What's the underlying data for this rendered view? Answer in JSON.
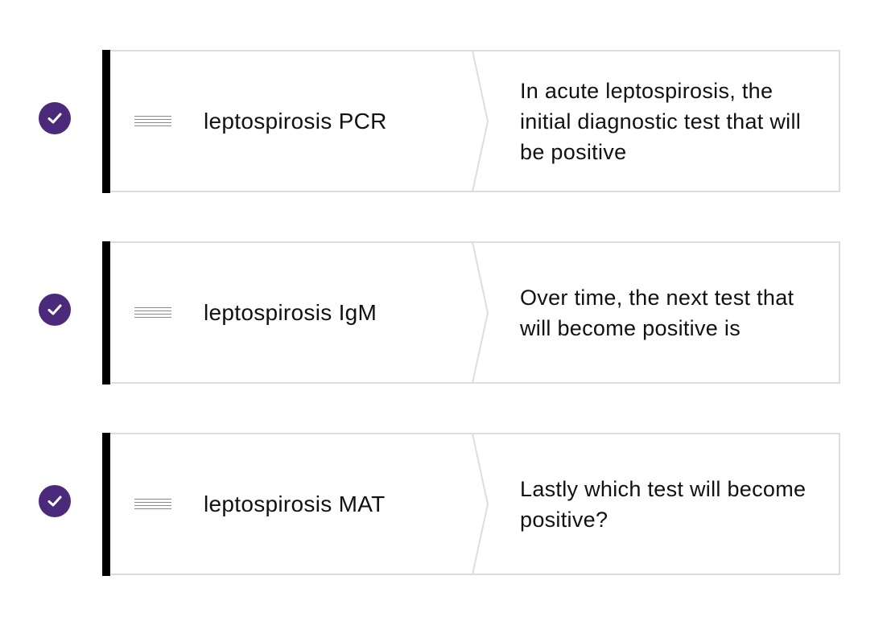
{
  "matching": {
    "rows": [
      {
        "status_icon": "check-icon",
        "answer": "leptospirosis PCR",
        "prompt": "In acute leptospirosis, the initial diagnostic test that will be positive"
      },
      {
        "status_icon": "check-icon",
        "answer": "leptospirosis IgM",
        "prompt": "Over time, the next test that will become positive is"
      },
      {
        "status_icon": "check-icon",
        "answer": "leptospirosis MAT",
        "prompt": "Lastly which test will become positive?"
      }
    ]
  },
  "colors": {
    "status_fill": "#4b2a7b",
    "status_check": "#ffffff",
    "card_border": "#dddddd",
    "accent_bar": "#000000",
    "text": "#111111"
  }
}
